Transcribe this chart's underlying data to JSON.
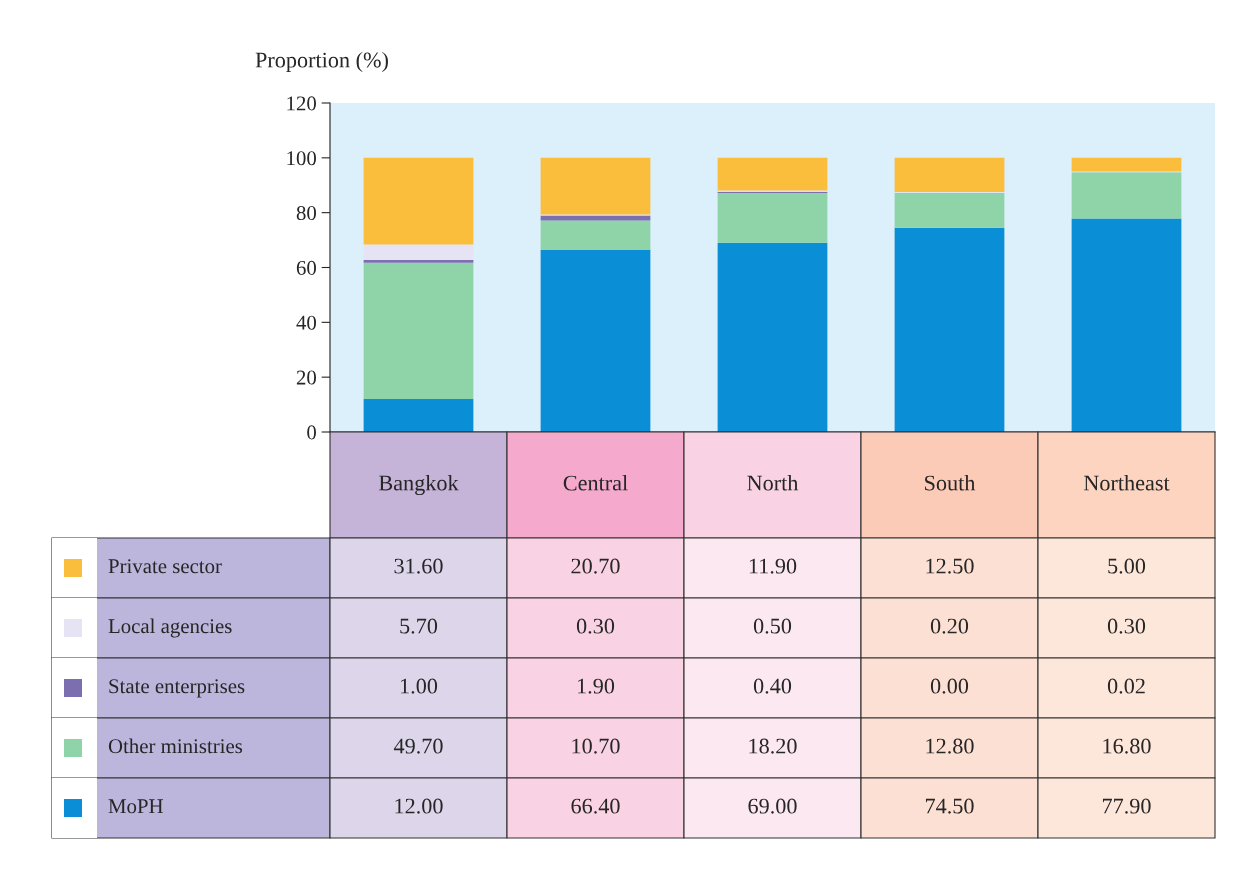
{
  "chart_data": {
    "type": "bar",
    "stacked": true,
    "ylabel": "Proportion (%)",
    "categories": [
      "Bangkok",
      "Central",
      "North",
      "South",
      "Northeast"
    ],
    "ylim": [
      0,
      120
    ],
    "yticks": [
      0,
      20,
      40,
      60,
      80,
      100,
      120
    ],
    "grid": false,
    "legend": "bottom",
    "series": [
      {
        "name": "MoPH",
        "color": "#0a8fd6",
        "values": [
          12.0,
          66.4,
          69.0,
          74.5,
          77.9
        ],
        "value_labels": [
          "12.00",
          "66.40",
          "69.00",
          "74.50",
          "77.90"
        ]
      },
      {
        "name": "Other ministries",
        "color": "#8fd4a8",
        "values": [
          49.7,
          10.7,
          18.2,
          12.8,
          16.8
        ],
        "value_labels": [
          "49.70",
          "10.70",
          "18.20",
          "12.80",
          "16.80"
        ]
      },
      {
        "name": "State enterprises",
        "color": "#7b6fb0",
        "values": [
          1.0,
          1.9,
          0.4,
          0.0,
          0.02
        ],
        "value_labels": [
          "1.00",
          "1.90",
          "0.40",
          "0.00",
          "0.02"
        ]
      },
      {
        "name": "Local agencies",
        "color": "#e6e4f4",
        "values": [
          5.7,
          0.3,
          0.5,
          0.2,
          0.3
        ],
        "value_labels": [
          "5.70",
          "0.30",
          "0.50",
          "0.20",
          "0.30"
        ]
      },
      {
        "name": "Private sector",
        "color": "#fbbd3c",
        "values": [
          31.6,
          20.7,
          11.9,
          12.5,
          5.0
        ],
        "value_labels": [
          "31.60",
          "20.70",
          "11.90",
          "12.50",
          "5.00"
        ]
      }
    ]
  }
}
